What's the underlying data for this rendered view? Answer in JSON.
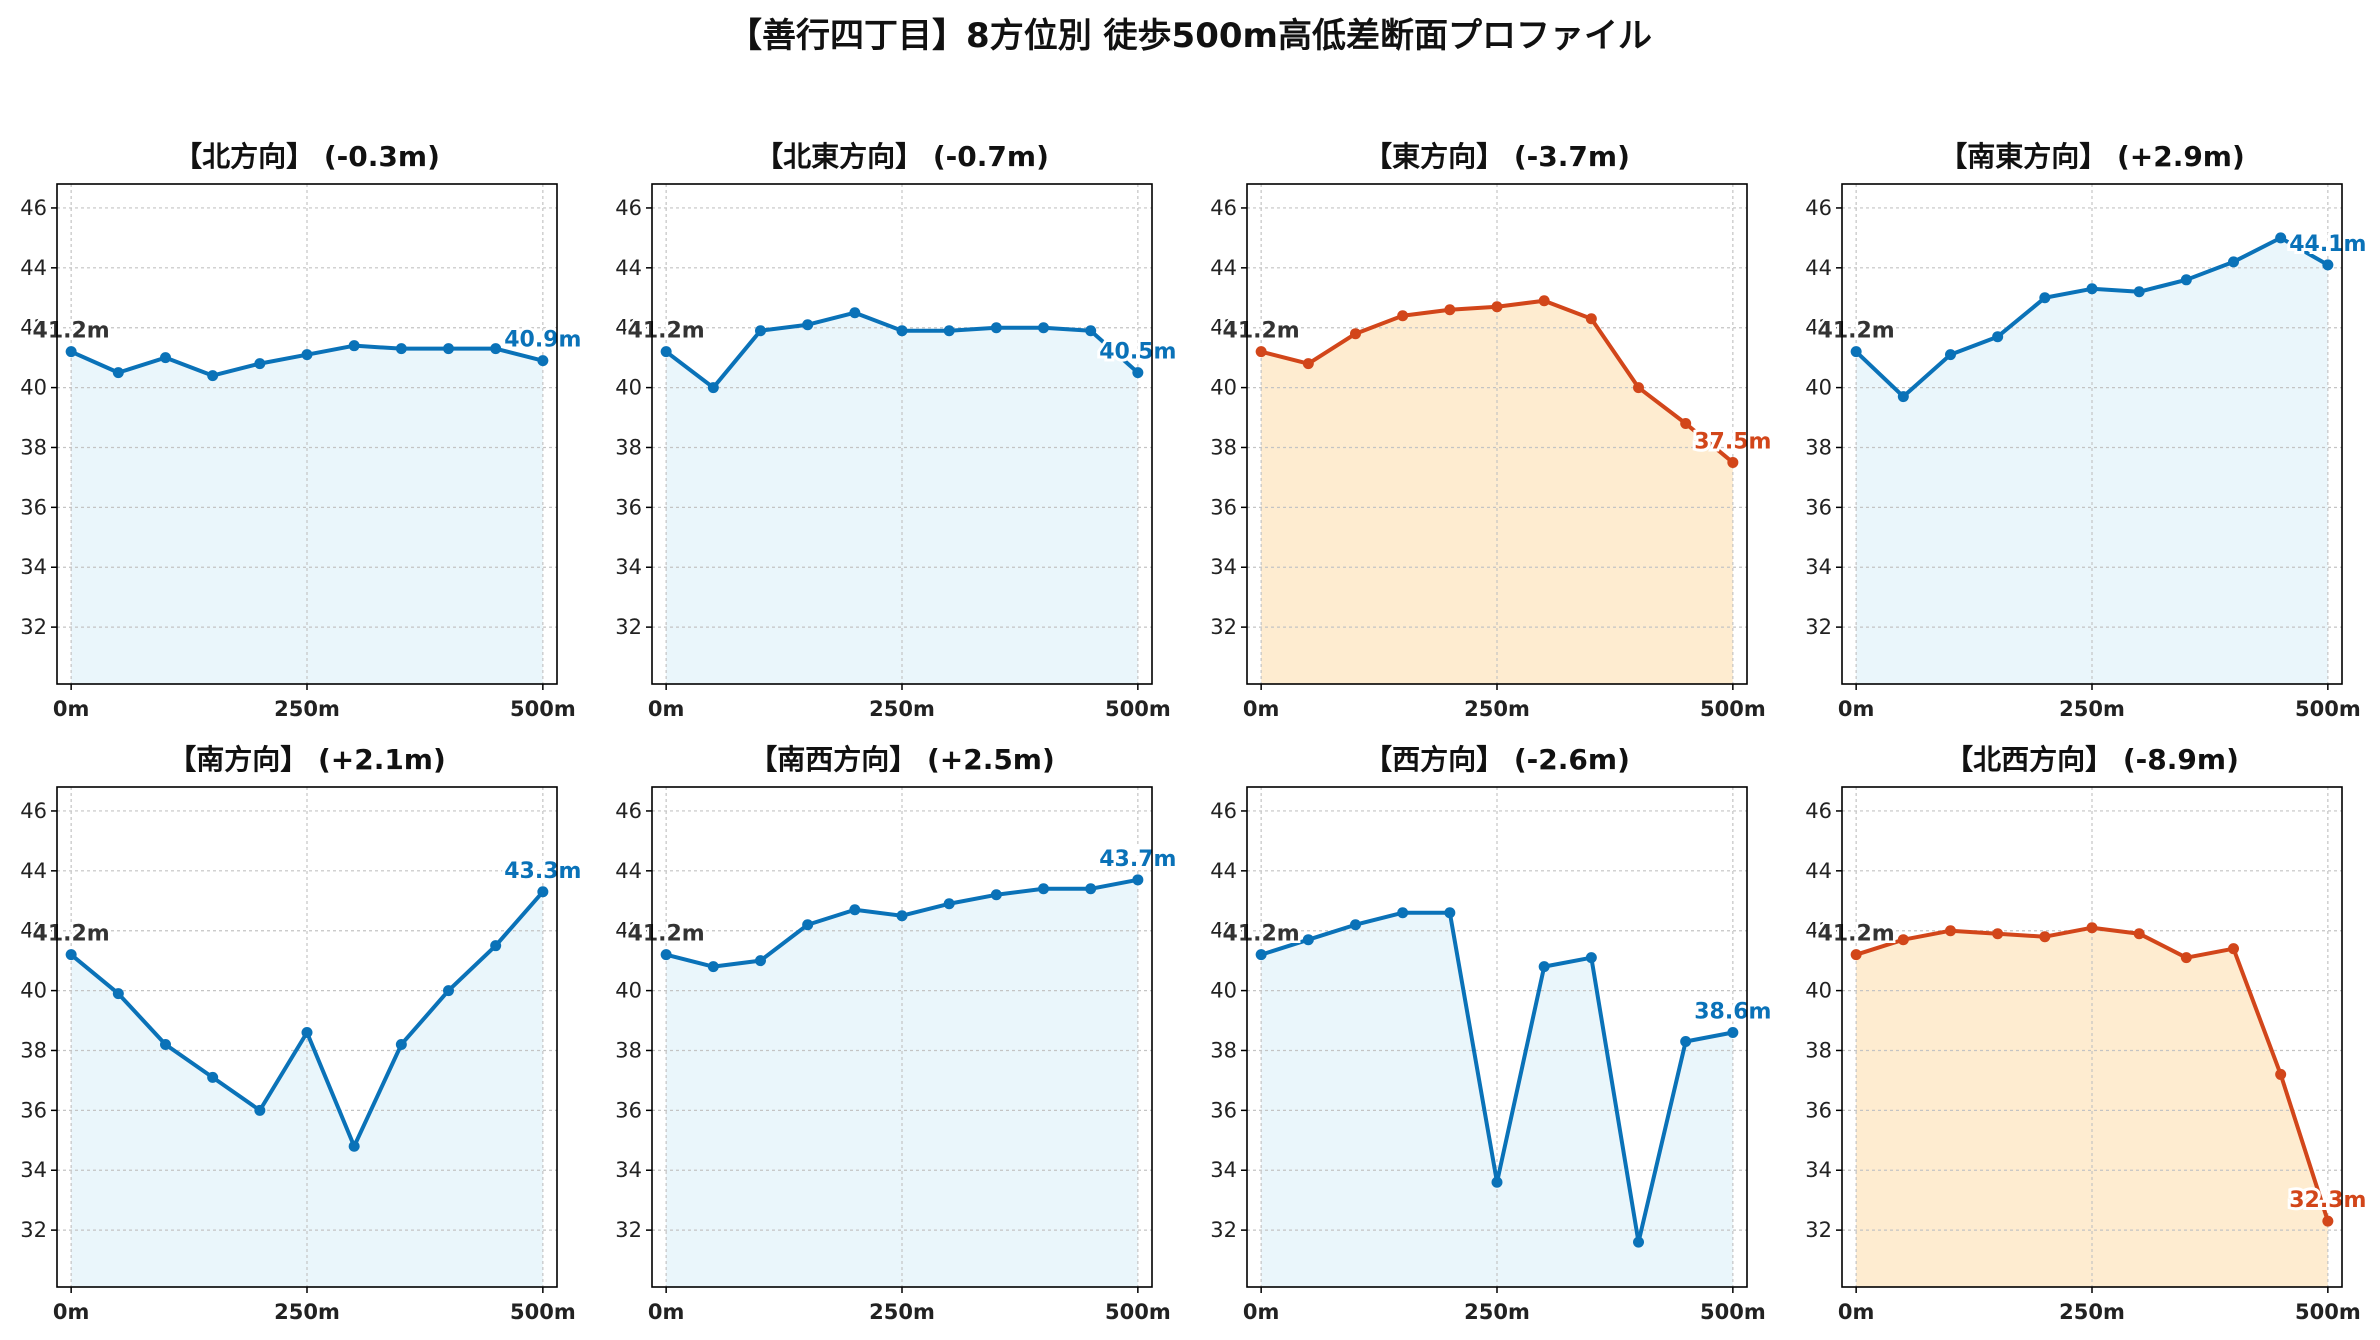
{
  "title": "【善行四丁目】8方位別 徒歩500m高低差断面プロファイル",
  "colors": {
    "up_line": "#0a72b8",
    "up_fill": "#eaf6fb",
    "down_line": "#d2461a",
    "down_fill": "#feecd0",
    "grid": "#c4c4c4",
    "axis": "#000000"
  },
  "chart_data": [
    {
      "type": "line",
      "title": "【北方向】 (-0.3m)",
      "style": "blue",
      "x": [
        0,
        50,
        100,
        150,
        200,
        250,
        300,
        350,
        400,
        450,
        500
      ],
      "values": [
        41.2,
        40.5,
        41.0,
        40.4,
        40.8,
        41.1,
        41.4,
        41.3,
        41.3,
        41.3,
        40.9
      ],
      "start_label": "41.2m",
      "end_label": "40.9m",
      "xticks": [
        "0m",
        "250m",
        "500m"
      ],
      "yticks": [
        "32",
        "34",
        "36",
        "38",
        "40",
        "42",
        "44",
        "46"
      ],
      "ylim": [
        30.1,
        46.8
      ],
      "xlim": [
        -15,
        515
      ],
      "grid": true
    },
    {
      "type": "line",
      "title": "【北東方向】 (-0.7m)",
      "style": "blue",
      "x": [
        0,
        50,
        100,
        150,
        200,
        250,
        300,
        350,
        400,
        450,
        500
      ],
      "values": [
        41.2,
        40.0,
        41.9,
        42.1,
        42.5,
        41.9,
        41.9,
        42.0,
        42.0,
        41.9,
        40.5
      ],
      "start_label": "41.2m",
      "end_label": "40.5m",
      "xticks": [
        "0m",
        "250m",
        "500m"
      ],
      "yticks": [
        "32",
        "34",
        "36",
        "38",
        "40",
        "42",
        "44",
        "46"
      ],
      "ylim": [
        30.1,
        46.8
      ],
      "xlim": [
        -15,
        515
      ],
      "grid": true
    },
    {
      "type": "line",
      "title": "【東方向】 (-3.7m)",
      "style": "orange",
      "x": [
        0,
        50,
        100,
        150,
        200,
        250,
        300,
        350,
        400,
        450,
        500
      ],
      "values": [
        41.2,
        40.8,
        41.8,
        42.4,
        42.6,
        42.7,
        42.9,
        42.3,
        40.0,
        38.8,
        37.5
      ],
      "start_label": "41.2m",
      "end_label": "37.5m",
      "xticks": [
        "0m",
        "250m",
        "500m"
      ],
      "yticks": [
        "32",
        "34",
        "36",
        "38",
        "40",
        "42",
        "44",
        "46"
      ],
      "ylim": [
        30.1,
        46.8
      ],
      "xlim": [
        -15,
        515
      ],
      "grid": true
    },
    {
      "type": "line",
      "title": "【南東方向】 (+2.9m)",
      "style": "blue",
      "x": [
        0,
        50,
        100,
        150,
        200,
        250,
        300,
        350,
        400,
        450,
        500
      ],
      "values": [
        41.2,
        39.7,
        41.1,
        41.7,
        43.0,
        43.3,
        43.2,
        43.6,
        44.2,
        45.0,
        44.1
      ],
      "start_label": "41.2m",
      "end_label": "44.1m",
      "xticks": [
        "0m",
        "250m",
        "500m"
      ],
      "yticks": [
        "32",
        "34",
        "36",
        "38",
        "40",
        "42",
        "44",
        "46"
      ],
      "ylim": [
        30.1,
        46.8
      ],
      "xlim": [
        -15,
        515
      ],
      "grid": true
    },
    {
      "type": "line",
      "title": "【南方向】 (+2.1m)",
      "style": "blue",
      "x": [
        0,
        50,
        100,
        150,
        200,
        250,
        300,
        350,
        400,
        450,
        500
      ],
      "values": [
        41.2,
        39.9,
        38.2,
        37.1,
        36.0,
        38.6,
        34.8,
        38.2,
        40.0,
        41.5,
        43.3
      ],
      "start_label": "41.2m",
      "end_label": "43.3m",
      "xticks": [
        "0m",
        "250m",
        "500m"
      ],
      "yticks": [
        "32",
        "34",
        "36",
        "38",
        "40",
        "42",
        "44",
        "46"
      ],
      "ylim": [
        30.1,
        46.8
      ],
      "xlim": [
        -15,
        515
      ],
      "grid": true
    },
    {
      "type": "line",
      "title": "【南西方向】 (+2.5m)",
      "style": "blue",
      "x": [
        0,
        50,
        100,
        150,
        200,
        250,
        300,
        350,
        400,
        450,
        500
      ],
      "values": [
        41.2,
        40.8,
        41.0,
        42.2,
        42.7,
        42.5,
        42.9,
        43.2,
        43.4,
        43.4,
        43.7
      ],
      "start_label": "41.2m",
      "end_label": "43.7m",
      "xticks": [
        "0m",
        "250m",
        "500m"
      ],
      "yticks": [
        "32",
        "34",
        "36",
        "38",
        "40",
        "42",
        "44",
        "46"
      ],
      "ylim": [
        30.1,
        46.8
      ],
      "xlim": [
        -15,
        515
      ],
      "grid": true
    },
    {
      "type": "line",
      "title": "【西方向】 (-2.6m)",
      "style": "blue",
      "x": [
        0,
        50,
        100,
        150,
        200,
        250,
        300,
        350,
        400,
        450,
        500
      ],
      "values": [
        41.2,
        41.7,
        42.2,
        42.6,
        42.6,
        33.6,
        40.8,
        41.1,
        31.6,
        38.3,
        38.6
      ],
      "start_label": "41.2m",
      "end_label": "38.6m",
      "xticks": [
        "0m",
        "250m",
        "500m"
      ],
      "yticks": [
        "32",
        "34",
        "36",
        "38",
        "40",
        "42",
        "44",
        "46"
      ],
      "ylim": [
        30.1,
        46.8
      ],
      "xlim": [
        -15,
        515
      ],
      "grid": true
    },
    {
      "type": "line",
      "title": "【北西方向】 (-8.9m)",
      "style": "orange",
      "x": [
        0,
        50,
        100,
        150,
        200,
        250,
        300,
        350,
        400,
        450,
        500
      ],
      "values": [
        41.2,
        41.7,
        42.0,
        41.9,
        41.8,
        42.1,
        41.9,
        41.1,
        41.4,
        37.2,
        32.3
      ],
      "start_label": "41.2m",
      "end_label": "32.3m",
      "xticks": [
        "0m",
        "250m",
        "500m"
      ],
      "yticks": [
        "32",
        "34",
        "36",
        "38",
        "40",
        "42",
        "44",
        "46"
      ],
      "ylim": [
        30.1,
        46.8
      ],
      "xlim": [
        -15,
        515
      ],
      "grid": true
    }
  ]
}
